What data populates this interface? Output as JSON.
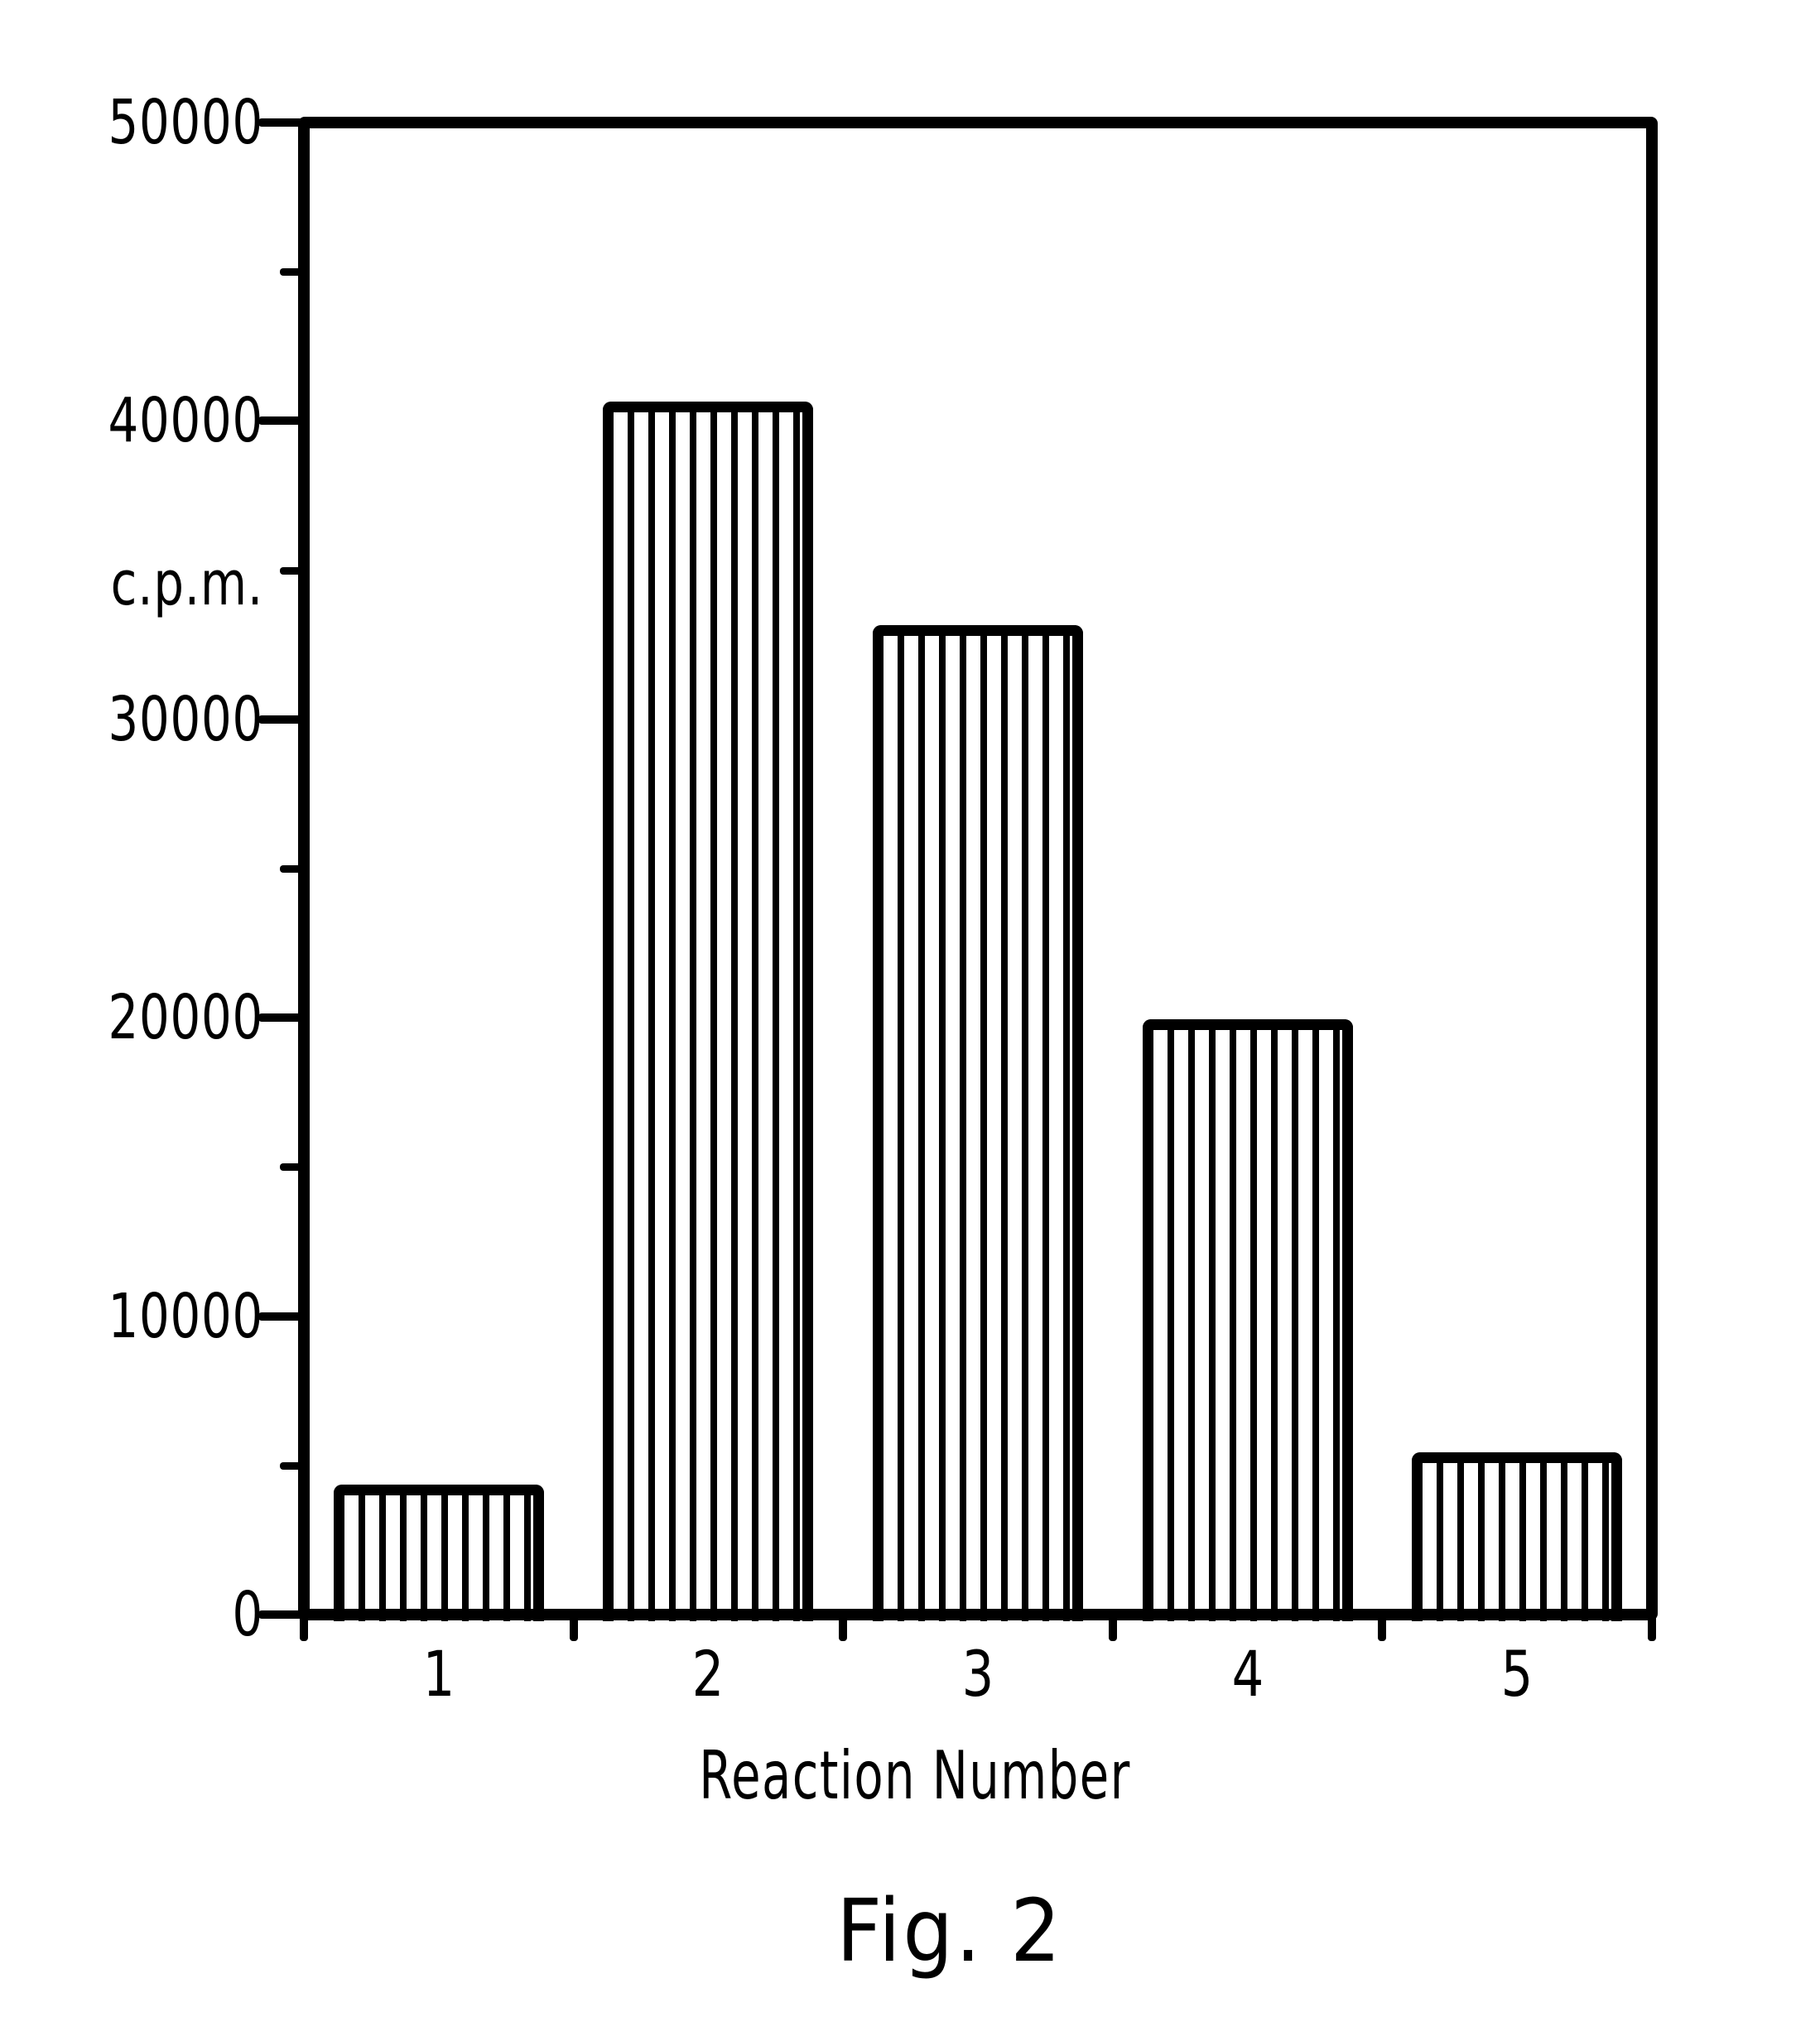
{
  "figure": {
    "caption": "Fig. 2"
  },
  "chart_data": {
    "type": "bar",
    "categories": [
      "1",
      "2",
      "3",
      "4",
      "5"
    ],
    "values": [
      4400,
      40700,
      33200,
      20000,
      5500
    ],
    "title": "",
    "xlabel": "Reaction Number",
    "ylabel": "c.p.m.",
    "ylim": [
      0,
      50000
    ],
    "y_major_ticks": [
      0,
      10000,
      20000,
      30000,
      40000,
      50000
    ],
    "y_minor_ticks": [
      5000,
      15000,
      25000,
      35000,
      45000
    ],
    "grid": false,
    "legend": null,
    "bar_fill": "vertical-hatch",
    "colors": {
      "ink": "#000000",
      "background": "#ffffff"
    }
  }
}
